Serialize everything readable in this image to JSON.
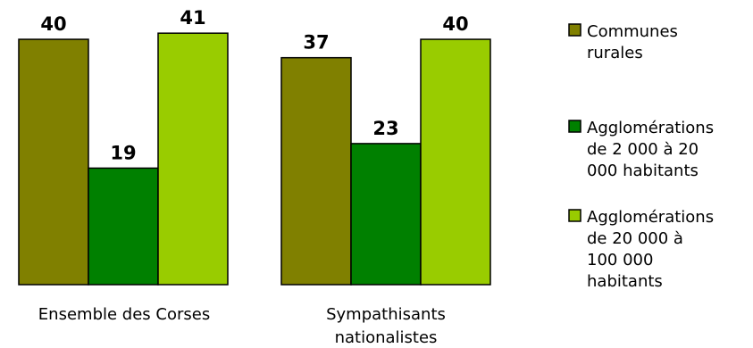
{
  "chart_data": {
    "type": "bar",
    "categories": [
      "Ensemble des Corses",
      "Sympathisants nationalistes"
    ],
    "series": [
      {
        "name": "Communes rurales",
        "values": [
          40,
          37
        ],
        "color": "#808000"
      },
      {
        "name": "Agglomérations de 2 000 à 20 000 habitants",
        "values": [
          19,
          23
        ],
        "color": "#008000"
      },
      {
        "name": "Agglomérations de 20 000 à 100 000 habitants",
        "values": [
          41,
          40
        ],
        "color": "#99cc00"
      }
    ],
    "ylim": [
      0,
      43.5
    ],
    "grid": false,
    "legend_position": "right",
    "title": "",
    "xlabel": "",
    "ylabel": ""
  }
}
